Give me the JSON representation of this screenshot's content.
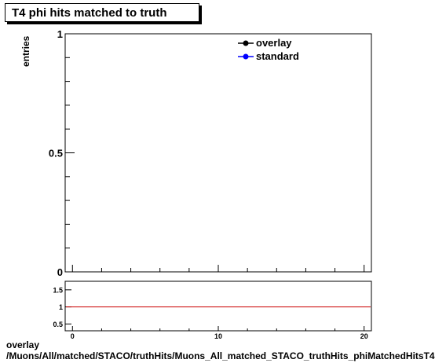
{
  "chart_data": [
    {
      "type": "line",
      "title": "T4 phi hits matched to truth",
      "ylabel": "entries",
      "xlim": [
        -0.5,
        20.5
      ],
      "ylim": [
        0,
        1
      ],
      "y_ticks": [
        {
          "value": 0,
          "label": "0"
        },
        {
          "value": 0.5,
          "label": "0.5"
        },
        {
          "value": 1,
          "label": "1"
        }
      ],
      "legend_position": "top-right",
      "series": [
        {
          "name": "overlay",
          "color": "#000000",
          "marker": "filled-circle",
          "values": []
        },
        {
          "name": "standard",
          "color": "#0000ff",
          "marker": "filled-circle",
          "values": []
        }
      ]
    },
    {
      "type": "line",
      "xlim": [
        -0.5,
        20.5
      ],
      "ylim": [
        0.3,
        1.75
      ],
      "x_ticks": [
        {
          "value": 0,
          "label": "0"
        },
        {
          "value": 10,
          "label": "10"
        },
        {
          "value": 20,
          "label": "20"
        }
      ],
      "y_ticks": [
        {
          "value": 0.5,
          "label": "0.5"
        },
        {
          "value": 1,
          "label": "1"
        },
        {
          "value": 1.5,
          "label": "1.5"
        }
      ],
      "reference_line": {
        "y": 1,
        "color": "#cc0000"
      },
      "grid": false
    }
  ],
  "footer": {
    "line1": "overlay",
    "line2": "/Muons/All/matched/STACO/truthHits/Muons_All_matched_STACO_truthHits_phiMatchedHitsT4"
  }
}
